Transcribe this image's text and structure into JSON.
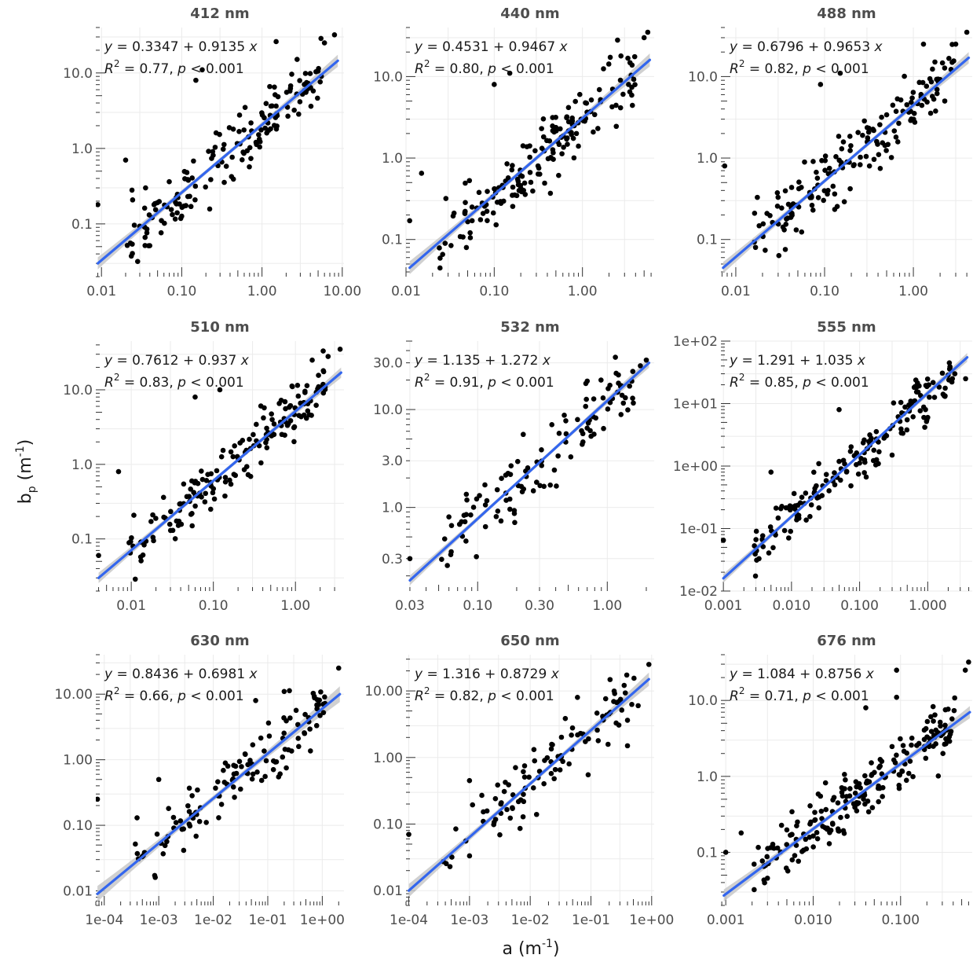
{
  "x_axis_label": {
    "main": "a (m",
    "sup": "-1",
    "close": ")"
  },
  "y_axis_label": {
    "main": "b",
    "sub": "p",
    "open": " (m",
    "sup": "-1",
    "close": ")"
  },
  "colors": {
    "points": "#000000",
    "fit_line": "#3366ee",
    "confidence_band": "#c8c8c8",
    "grid": "#ebebeb",
    "text": "#4d4d4d"
  },
  "chart_data": [
    {
      "type": "scatter",
      "title": "412 nm",
      "eq": {
        "a": "0.3347",
        "b": "0.9135"
      },
      "r2": "0.77",
      "p": "p < 0.001",
      "xlim": [
        0.0085,
        10.5
      ],
      "ylim": [
        0.02,
        40
      ],
      "xticks": [
        0.01,
        0.1,
        1,
        10
      ],
      "xtick_labels": [
        "0.01",
        "0.10",
        "1.00",
        "10.00"
      ],
      "yticks": [
        0.1,
        1,
        10
      ],
      "ytick_labels": [
        "0.1",
        "1.0",
        "10.0"
      ],
      "fit": {
        "x": [
          0.009,
          8.8
        ],
        "y": [
          0.03,
          14.5
        ]
      },
      "ci_halfwidth_log": 0.08,
      "outliers": [
        [
          0.009,
          0.18
        ],
        [
          0.02,
          0.7
        ],
        [
          0.024,
          0.28
        ],
        [
          0.15,
          8
        ],
        [
          0.18,
          11
        ],
        [
          1.5,
          26
        ],
        [
          6,
          25
        ],
        [
          8,
          32
        ]
      ],
      "n_points": 160,
      "seed": 412
    },
    {
      "type": "scatter",
      "title": "440 nm",
      "eq": {
        "a": "0.4531",
        "b": "0.9467"
      },
      "r2": "0.80",
      "p": "p < 0.001",
      "xlim": [
        0.01,
        6.5
      ],
      "ylim": [
        0.035,
        40
      ],
      "xticks": [
        0.01,
        0.1,
        1
      ],
      "xtick_labels": [
        "0.01",
        "0.10",
        "1.00"
      ],
      "yticks": [
        0.1,
        1,
        10
      ],
      "ytick_labels": [
        "0.1",
        "1.0",
        "10.0"
      ],
      "fit": {
        "x": [
          0.011,
          5.8
        ],
        "y": [
          0.045,
          16
        ]
      },
      "ci_halfwidth_log": 0.08,
      "outliers": [
        [
          0.011,
          0.17
        ],
        [
          0.015,
          0.65
        ],
        [
          0.1,
          8
        ],
        [
          0.15,
          11
        ],
        [
          2.5,
          28
        ],
        [
          5.5,
          35
        ],
        [
          5,
          30
        ]
      ],
      "n_points": 170,
      "seed": 440
    },
    {
      "type": "scatter",
      "title": "488 nm",
      "eq": {
        "a": "0.6796",
        "b": "0.9653"
      },
      "r2": "0.82",
      "p": "p < 0.001",
      "xlim": [
        0.0068,
        4.6
      ],
      "ylim": [
        0.035,
        40
      ],
      "xticks": [
        0.01,
        0.1,
        1
      ],
      "xtick_labels": [
        "0.01",
        "0.10",
        "1.00"
      ],
      "yticks": [
        0.1,
        1,
        10
      ],
      "ytick_labels": [
        "0.1",
        "1.0",
        "10.0"
      ],
      "fit": {
        "x": [
          0.0072,
          4.2
        ],
        "y": [
          0.045,
          17
        ]
      },
      "ci_halfwidth_log": 0.07,
      "outliers": [
        [
          0.0075,
          0.8
        ],
        [
          0.09,
          8
        ],
        [
          0.15,
          11
        ],
        [
          1.3,
          25
        ],
        [
          3,
          25
        ],
        [
          4,
          35
        ]
      ],
      "n_points": 170,
      "seed": 488
    },
    {
      "type": "scatter",
      "title": "510 nm",
      "eq": {
        "a": "0.7612",
        "b": "0.937"
      },
      "r2": "0.83",
      "p": "p < 0.001",
      "xlim": [
        0.0037,
        3.9
      ],
      "ylim": [
        0.02,
        45
      ],
      "xticks": [
        0.01,
        0.1,
        1
      ],
      "xtick_labels": [
        "0.01",
        "0.10",
        "1.00"
      ],
      "yticks": [
        0.1,
        1,
        10
      ],
      "ytick_labels": [
        "0.1",
        "1.0",
        "10.0"
      ],
      "fit": {
        "x": [
          0.004,
          3.6
        ],
        "y": [
          0.03,
          17
        ]
      },
      "ci_halfwidth_log": 0.07,
      "outliers": [
        [
          0.004,
          0.06
        ],
        [
          0.007,
          0.8
        ],
        [
          0.06,
          8
        ],
        [
          0.12,
          10
        ],
        [
          1.6,
          25
        ],
        [
          2.5,
          28
        ],
        [
          3.5,
          35
        ]
      ],
      "n_points": 170,
      "seed": 510
    },
    {
      "type": "scatter",
      "title": "532 nm",
      "eq": {
        "a": "1.135",
        "b": "1.272"
      },
      "r2": "0.91",
      "p": "p < 0.001",
      "xlim": [
        0.028,
        2.3
      ],
      "ylim": [
        0.14,
        50
      ],
      "xticks": [
        0.03,
        0.1,
        0.3,
        1
      ],
      "xtick_labels": [
        "0.03",
        "0.10",
        "0.30",
        "1.00"
      ],
      "yticks": [
        0.3,
        1,
        3,
        10,
        30
      ],
      "ytick_labels": [
        "0.3",
        "1.0",
        "3.0",
        "10.0",
        "30.0"
      ],
      "fit": {
        "x": [
          0.03,
          2.1
        ],
        "y": [
          0.18,
          30
        ]
      },
      "ci_halfwidth_log": 0.05,
      "outliers": [
        [
          0.03,
          0.3
        ],
        [
          0.06,
          0.8
        ],
        [
          1.3,
          14
        ],
        [
          1.8,
          28
        ],
        [
          2.0,
          32
        ]
      ],
      "n_points": 110,
      "seed": 532
    },
    {
      "type": "scatter",
      "title": "555 nm",
      "eq": {
        "a": "1.291",
        "b": "1.035"
      },
      "r2": "0.85",
      "p": "p < 0.001",
      "xlim": [
        0.00092,
        4.5
      ],
      "ylim": [
        0.01,
        100
      ],
      "xticks": [
        0.001,
        0.01,
        0.1,
        1
      ],
      "xtick_labels": [
        "0.001",
        "0.010",
        "0.100",
        "1.000"
      ],
      "yticks": [
        0.01,
        0.1,
        1,
        10,
        100
      ],
      "ytick_labels": [
        "1e-02",
        "1e-01",
        "1e+00",
        "1e+01",
        "1e+02"
      ],
      "fit": {
        "x": [
          0.001,
          3.8
        ],
        "y": [
          0.016,
          55
        ]
      },
      "ci_halfwidth_log": 0.07,
      "outliers": [
        [
          0.001,
          0.065
        ],
        [
          0.005,
          0.8
        ],
        [
          0.05,
          8
        ],
        [
          0.3,
          1.5
        ],
        [
          1.0,
          6
        ],
        [
          2.5,
          30
        ],
        [
          3.6,
          25
        ]
      ],
      "n_points": 170,
      "seed": 555
    },
    {
      "type": "scatter",
      "title": "630 nm",
      "eq": {
        "a": "0.8436",
        "b": "0.6981"
      },
      "r2": "0.66",
      "p": "p < 0.001",
      "xlim": [
        7e-05,
        2.5
      ],
      "ylim": [
        0.006,
        40
      ],
      "xticks": [
        0.0001,
        0.001,
        0.01,
        0.1,
        1
      ],
      "xtick_labels": [
        "1e-04",
        "1e-03",
        "1e-02",
        "1e-01",
        "1e+00"
      ],
      "yticks": [
        0.01,
        0.1,
        1,
        10
      ],
      "ytick_labels": [
        "0.01",
        "0.10",
        "1.00",
        "10.00"
      ],
      "fit": {
        "x": [
          7.5e-05,
          2.1
        ],
        "y": [
          0.009,
          10
        ]
      },
      "ci_halfwidth_log": 0.12,
      "outliers": [
        [
          7.5e-05,
          0.25
        ],
        [
          0.0004,
          0.13
        ],
        [
          0.001,
          0.5
        ],
        [
          0.06,
          8
        ],
        [
          0.2,
          11
        ],
        [
          0.8,
          6
        ],
        [
          2.0,
          25
        ]
      ],
      "n_points": 120,
      "seed": 630
    },
    {
      "type": "scatter",
      "title": "650 nm",
      "eq": {
        "a": "1.316",
        "b": "0.8729"
      },
      "r2": "0.82",
      "p": "p < 0.001",
      "xlim": [
        9e-05,
        1.1
      ],
      "ylim": [
        0.006,
        35
      ],
      "xticks": [
        0.0001,
        0.001,
        0.01,
        0.1,
        1
      ],
      "xtick_labels": [
        "1e-04",
        "1e-03",
        "1e-02",
        "1e-01",
        "1e+00"
      ],
      "yticks": [
        0.01,
        0.1,
        1,
        10
      ],
      "ytick_labels": [
        "0.01",
        "0.10",
        "1.00",
        "10.00"
      ],
      "fit": {
        "x": [
          0.0001,
          0.9
        ],
        "y": [
          0.01,
          15
        ]
      },
      "ci_halfwidth_log": 0.1,
      "outliers": [
        [
          0.0001,
          0.07
        ],
        [
          0.001,
          0.45
        ],
        [
          0.06,
          8
        ],
        [
          0.09,
          0.55
        ],
        [
          0.4,
          1.5
        ],
        [
          0.6,
          6
        ],
        [
          0.9,
          25
        ]
      ],
      "n_points": 100,
      "seed": 650
    },
    {
      "type": "scatter",
      "title": "676 nm",
      "eq": {
        "a": "1.084",
        "b": "0.8756"
      },
      "r2": "0.71",
      "p": "p < 0.001",
      "xlim": [
        0.00088,
        0.66
      ],
      "ylim": [
        0.02,
        40
      ],
      "xticks": [
        0.001,
        0.01,
        0.1
      ],
      "xtick_labels": [
        "0.001",
        "0.010",
        "0.100"
      ],
      "yticks": [
        0.1,
        1,
        10
      ],
      "ytick_labels": [
        "0.1",
        "1.0",
        "10.0"
      ],
      "fit": {
        "x": [
          0.00095,
          0.62
        ],
        "y": [
          0.027,
          7
        ]
      },
      "ci_halfwidth_log": 0.08,
      "outliers": [
        [
          0.001,
          0.1
        ],
        [
          0.0015,
          0.18
        ],
        [
          0.04,
          8
        ],
        [
          0.09,
          25
        ],
        [
          0.09,
          11
        ],
        [
          0.55,
          25
        ],
        [
          0.6,
          32
        ]
      ],
      "n_points": 200,
      "seed": 676
    }
  ]
}
